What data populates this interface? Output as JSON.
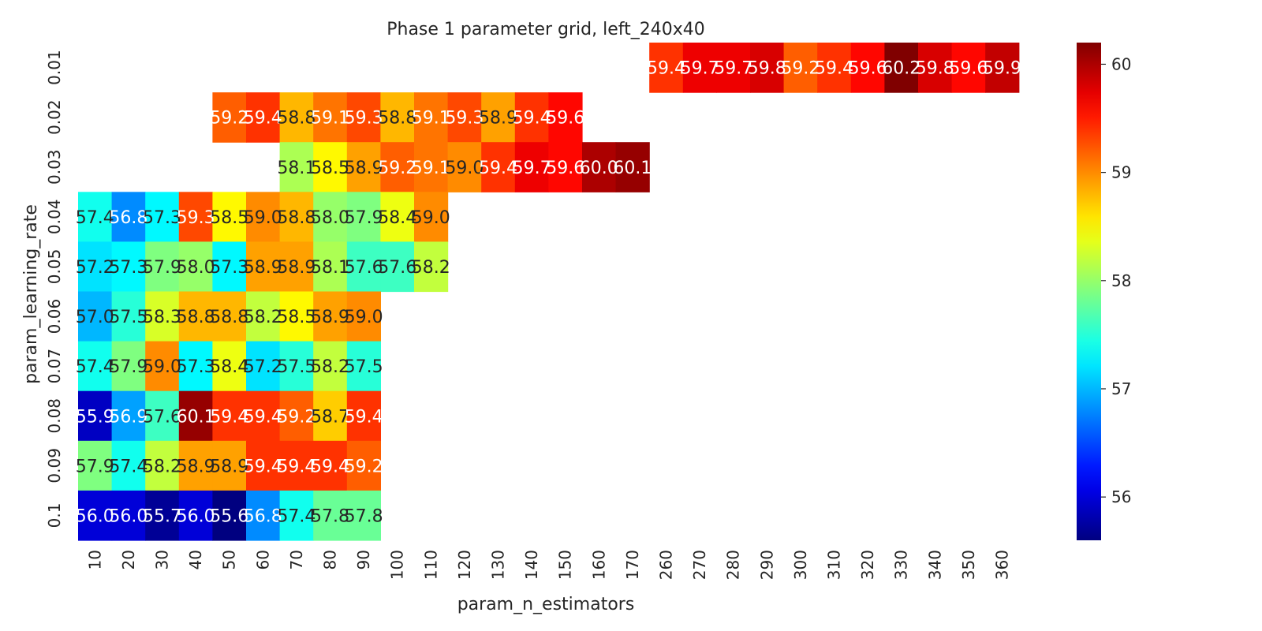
{
  "chart_data": {
    "type": "heatmap",
    "title": "Phase 1 parameter grid, left_240x40",
    "xlabel": "param_n_estimators",
    "ylabel": "param_learning_rate",
    "x_categories": [
      "10",
      "20",
      "30",
      "40",
      "50",
      "60",
      "70",
      "80",
      "90",
      "100",
      "110",
      "120",
      "130",
      "140",
      "150",
      "160",
      "170",
      "260",
      "270",
      "280",
      "290",
      "300",
      "310",
      "320",
      "330",
      "340",
      "350",
      "360"
    ],
    "y_categories": [
      "0.01",
      "0.02",
      "0.03",
      "0.04",
      "0.05",
      "0.06",
      "0.07",
      "0.08",
      "0.09",
      "0.1"
    ],
    "values": [
      [
        null,
        null,
        null,
        null,
        null,
        null,
        null,
        null,
        null,
        null,
        null,
        null,
        null,
        null,
        null,
        null,
        null,
        59.4,
        59.7,
        59.7,
        59.8,
        59.2,
        59.4,
        59.6,
        60.2,
        59.8,
        59.6,
        59.9
      ],
      [
        null,
        null,
        null,
        null,
        59.2,
        59.4,
        58.8,
        59.1,
        59.3,
        58.8,
        59.1,
        59.3,
        58.9,
        59.4,
        59.6,
        null,
        null,
        null,
        null,
        null,
        null,
        null,
        null,
        null,
        null,
        null,
        null,
        null
      ],
      [
        null,
        null,
        null,
        null,
        null,
        null,
        58.1,
        58.5,
        58.9,
        59.2,
        59.1,
        59.0,
        59.4,
        59.7,
        59.6,
        60.0,
        60.1,
        null,
        null,
        null,
        null,
        null,
        null,
        null,
        null,
        null,
        null,
        null
      ],
      [
        57.4,
        56.8,
        57.3,
        59.3,
        58.5,
        59.0,
        58.8,
        58.0,
        57.9,
        58.4,
        59.0,
        null,
        null,
        null,
        null,
        null,
        null,
        null,
        null,
        null,
        null,
        null,
        null,
        null,
        null,
        null,
        null,
        null
      ],
      [
        57.2,
        57.3,
        57.9,
        58.0,
        57.3,
        58.9,
        58.9,
        58.1,
        57.6,
        57.6,
        58.2,
        null,
        null,
        null,
        null,
        null,
        null,
        null,
        null,
        null,
        null,
        null,
        null,
        null,
        null,
        null,
        null,
        null
      ],
      [
        57.0,
        57.5,
        58.3,
        58.8,
        58.8,
        58.2,
        58.5,
        58.9,
        59.0,
        null,
        null,
        null,
        null,
        null,
        null,
        null,
        null,
        null,
        null,
        null,
        null,
        null,
        null,
        null,
        null,
        null,
        null,
        null
      ],
      [
        57.4,
        57.9,
        59.0,
        57.3,
        58.4,
        57.2,
        57.5,
        58.2,
        57.5,
        null,
        null,
        null,
        null,
        null,
        null,
        null,
        null,
        null,
        null,
        null,
        null,
        null,
        null,
        null,
        null,
        null,
        null,
        null
      ],
      [
        55.9,
        56.9,
        57.6,
        60.1,
        59.4,
        59.4,
        59.2,
        58.7,
        59.4,
        null,
        null,
        null,
        null,
        null,
        null,
        null,
        null,
        null,
        null,
        null,
        null,
        null,
        null,
        null,
        null,
        null,
        null,
        null
      ],
      [
        57.9,
        57.4,
        58.2,
        58.9,
        58.9,
        59.4,
        59.4,
        59.4,
        59.2,
        null,
        null,
        null,
        null,
        null,
        null,
        null,
        null,
        null,
        null,
        null,
        null,
        null,
        null,
        null,
        null,
        null,
        null,
        null
      ],
      [
        56.0,
        56.0,
        55.7,
        56.0,
        55.6,
        56.8,
        57.4,
        57.8,
        57.8,
        null,
        null,
        null,
        null,
        null,
        null,
        null,
        null,
        null,
        null,
        null,
        null,
        null,
        null,
        null,
        null,
        null,
        null,
        null
      ]
    ],
    "colormap": "jet",
    "vmin": 55.6,
    "vmax": 60.2,
    "colorbar_ticks": [
      "56",
      "57",
      "58",
      "59",
      "60"
    ],
    "colorbar_tick_values": [
      56,
      57,
      58,
      59,
      60
    ],
    "annotations": true,
    "annotation_decimals": 1,
    "grid": false
  }
}
